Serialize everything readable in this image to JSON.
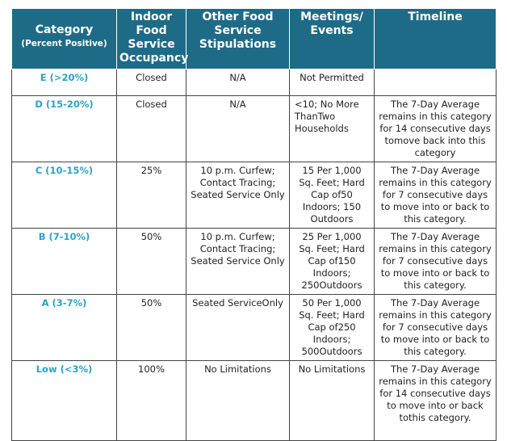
{
  "table": {
    "header": [
      {
        "title": "Category",
        "subtitle": "(Percent Positive)"
      },
      "Indoor Food Service Occupancy",
      "Other Food Service Stipulations",
      "Meetings/ Events",
      "Timeline"
    ],
    "rows": [
      [
        "E (>20%)",
        "Closed",
        "N/A",
        "Not Permitted",
        ""
      ],
      [
        "D (15-20%)",
        "Closed",
        "N/A",
        "<10; No More ThanTwo Households",
        "The 7-Day Average remains in this category for 14 consecutive days tomove back into this category"
      ],
      [
        "C (10-15%)",
        "25%",
        "10 p.m. Curfew; Contact Tracing; Seated Service Only",
        "15 Per 1,000 Sq. Feet; Hard Cap of50 Indoors; 150 Outdoors",
        "The 7-Day Average remains in this category for 7 consecutive days to move into or back to this category."
      ],
      [
        "B (7-10%)",
        "50%",
        "10 p.m. Curfew; Contact Tracing; Seated Service Only",
        "25 Per 1,000 Sq. Feet; Hard Cap of150 Indoors; 250Outdoors",
        "The 7-Day Average remains in this category for 7 consecutive days to move into or back to this category."
      ],
      [
        "A (3-7%)",
        "50%",
        "Seated ServiceOnly",
        "50 Per 1,000 Sq. Feet; Hard Cap of250 Indoors; 500Outdoors",
        "The 7-Day Average remains in this category for 7 consecutive days to move into or back to this category."
      ],
      [
        "Low (<3%)",
        "100%",
        "No Limitations",
        "No Limitations",
        "The 7-Day Average remains in this category for 14 consecutive days to move into or back tothis category."
      ]
    ]
  }
}
